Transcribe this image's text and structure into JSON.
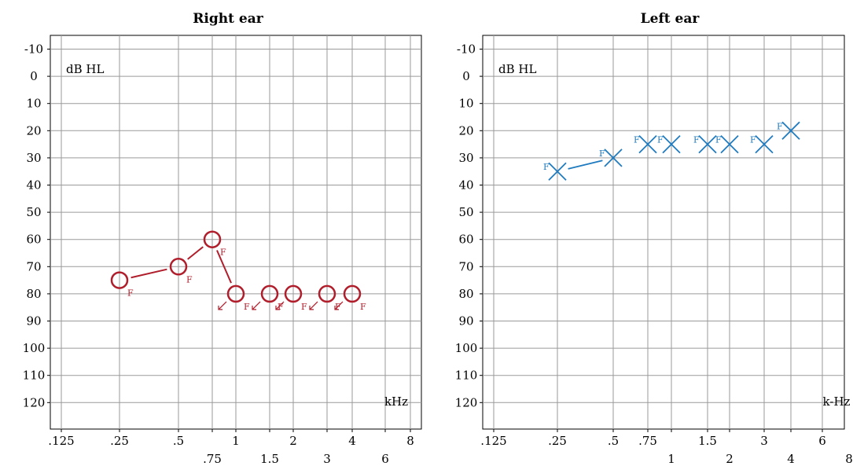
{
  "chart_data": [
    {
      "type": "scatter",
      "title": "Right ear",
      "ylabel": "dB HL",
      "xunit": "kHz",
      "ylim": [
        -10,
        120
      ],
      "y_ticks": [
        "-10",
        "0",
        "10",
        "20",
        "30",
        "40",
        "50",
        "60",
        "70",
        "80",
        "90",
        "100",
        "110",
        "120"
      ],
      "x_ticks_upper": [
        ".125",
        ".25",
        ".5",
        "1",
        "2",
        "4",
        "8"
      ],
      "x_ticks_lower": [
        ".75",
        "1.5",
        "3",
        "6"
      ],
      "grid": true,
      "series": [
        {
          "symbol": "circle",
          "color": "#b01e2c",
          "marker_label": "F",
          "points": [
            {
              "x": 0.25,
              "y": 75,
              "connected": true
            },
            {
              "x": 0.5,
              "y": 70,
              "connected": true
            },
            {
              "x": 0.75,
              "y": 60,
              "connected": true
            },
            {
              "x": 1,
              "y": 80,
              "connected": true,
              "no_response": true
            },
            {
              "x": 1.5,
              "y": 80,
              "connected": false,
              "no_response": true
            },
            {
              "x": 2,
              "y": 80,
              "connected": false,
              "no_response": true
            },
            {
              "x": 3,
              "y": 80,
              "connected": false,
              "no_response": true
            },
            {
              "x": 4,
              "y": 80,
              "connected": false,
              "no_response": true
            }
          ]
        }
      ]
    },
    {
      "type": "scatter",
      "title": "Left ear",
      "ylabel": "dB HL",
      "xunit": "k-Hz",
      "ylim": [
        -10,
        120
      ],
      "y_ticks": [
        "-10",
        "0",
        "10",
        "20",
        "30",
        "40",
        "50",
        "60",
        "70",
        "80",
        "90",
        "100",
        "110",
        "120"
      ],
      "x_ticks_upper": [
        ".125",
        ".25",
        ".5",
        ".75",
        "1.5",
        "3",
        "6"
      ],
      "x_ticks_lower": [
        "1",
        "2",
        "4",
        "8"
      ],
      "grid": true,
      "series": [
        {
          "symbol": "cross",
          "color": "#1f7bbf",
          "marker_label": "F",
          "points": [
            {
              "x": 0.25,
              "y": 35
            },
            {
              "x": 0.5,
              "y": 30
            },
            {
              "x": 0.75,
              "y": 25
            },
            {
              "x": 1,
              "y": 25
            },
            {
              "x": 1.5,
              "y": 25
            },
            {
              "x": 2,
              "y": 25
            },
            {
              "x": 3,
              "y": 25
            },
            {
              "x": 4,
              "y": 20
            }
          ]
        }
      ]
    }
  ]
}
